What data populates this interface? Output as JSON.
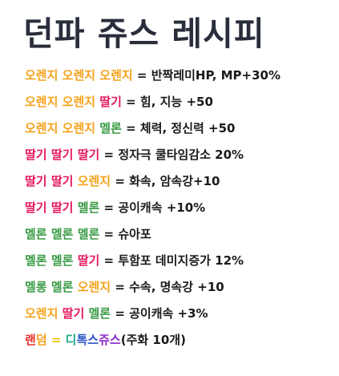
{
  "title": "던파 쥬스 레시피",
  "colors": {
    "orange": "#f5a21b",
    "pink": "#e6195c",
    "green": "#3a9b46",
    "red": "#e8302a",
    "yellow": "#f4c60c",
    "teal": "#1fa98b",
    "blue": "#2b53c6",
    "purple": "#8a2bc8",
    "text": "#1a1a1a"
  },
  "recipes": [
    {
      "ingredients": [
        "오렌지",
        "오렌지",
        "오렌지"
      ],
      "effect": "반짝레미HP, MP+30%"
    },
    {
      "ingredients": [
        "오렌지",
        "오렌지",
        "딸기"
      ],
      "effect": "힘, 지능 +50"
    },
    {
      "ingredients": [
        "오렌지",
        "오렌지",
        "멜론"
      ],
      "effect": "체력, 정신력 +50"
    },
    {
      "ingredients": [
        "딸기",
        "딸기",
        "딸기"
      ],
      "effect": "정자극 쿨타임감소 20%"
    },
    {
      "ingredients": [
        "딸기",
        "딸기",
        "오렌지"
      ],
      "effect": "화속, 암속강+10"
    },
    {
      "ingredients": [
        "딸기",
        "딸기",
        "멜론"
      ],
      "effect": "공이캐속 +10%"
    },
    {
      "ingredients": [
        "멜론",
        "멜론",
        "멜론"
      ],
      "effect": "슈아포"
    },
    {
      "ingredients": [
        "멜론",
        "멜론",
        "딸기"
      ],
      "effect": "투함포 데미지증가 12%"
    },
    {
      "ingredients": [
        "멜롱",
        "멜론",
        "오렌지"
      ],
      "effect": "수속, 명속강 +10"
    },
    {
      "ingredients": [
        "오렌지",
        "딸기",
        "멜론"
      ],
      "effect": "공이캐속 +3%"
    }
  ],
  "random_recipe": {
    "label1": "랜",
    "label2": "덤",
    "eq": "=",
    "result_chars": [
      "디",
      "톡",
      "스",
      "쥬",
      "스"
    ],
    "note": "(주화 10개)"
  }
}
